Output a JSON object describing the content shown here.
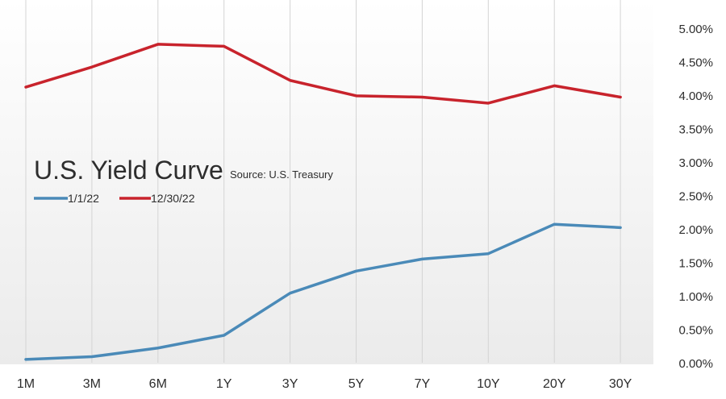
{
  "chart_data": {
    "type": "line",
    "title": "U.S. Yield Curve",
    "subtitle": "Source: U.S. Treasury",
    "categories": [
      "1M",
      "3M",
      "6M",
      "1Y",
      "3Y",
      "5Y",
      "7Y",
      "10Y",
      "20Y",
      "30Y"
    ],
    "series": [
      {
        "name": "1/1/22",
        "color": "#4a8ab8",
        "values": [
          0.05,
          0.09,
          0.22,
          0.41,
          1.04,
          1.37,
          1.55,
          1.63,
          2.07,
          2.02
        ]
      },
      {
        "name": "12/30/22",
        "color": "#c8232c",
        "values": [
          4.12,
          4.42,
          4.76,
          4.73,
          4.22,
          3.99,
          3.97,
          3.88,
          4.14,
          3.97
        ]
      }
    ],
    "y_ticks": [
      "0.00%",
      "0.50%",
      "1.00%",
      "1.50%",
      "2.00%",
      "2.50%",
      "3.00%",
      "3.50%",
      "4.00%",
      "4.50%",
      "5.00%"
    ],
    "ylim": [
      0,
      5
    ],
    "y_axis_side": "right",
    "grid": "vertical",
    "legend_position": "left-middle"
  }
}
